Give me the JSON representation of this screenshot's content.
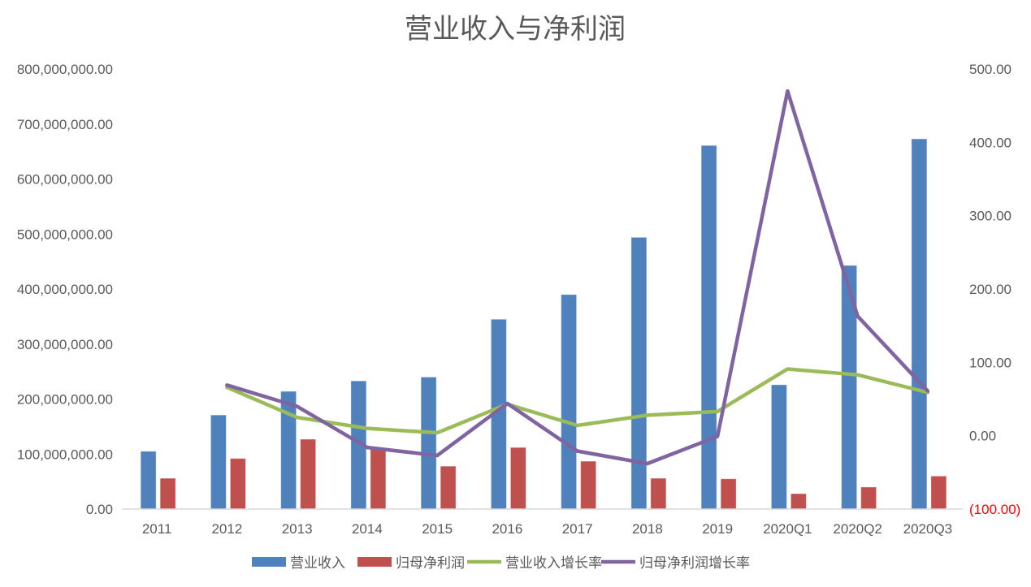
{
  "chart_data": {
    "type": "bar",
    "title": "营业收入与净利润",
    "categories": [
      "2011",
      "2012",
      "2013",
      "2014",
      "2015",
      "2016",
      "2017",
      "2018",
      "2019",
      "2020Q1",
      "2020Q2",
      "2020Q3"
    ],
    "y_left": {
      "range": [
        0,
        800000000
      ],
      "ticks": [
        "0.00",
        "100,000,000.00",
        "200,000,000.00",
        "300,000,000.00",
        "400,000,000.00",
        "500,000,000.00",
        "600,000,000.00",
        "700,000,000.00",
        "800,000,000.00"
      ]
    },
    "y_right": {
      "range": [
        -100,
        500
      ],
      "ticks": [
        "(100.00)",
        "0.00",
        "100.00",
        "200.00",
        "300.00",
        "400.00",
        "500.00"
      ],
      "negative_tick_color": "#ff0000"
    },
    "grid": false,
    "legend_position": "bottom",
    "series": [
      {
        "name": "营业收入",
        "type": "bar",
        "axis": "left",
        "color": "#4f81bd",
        "values": [
          105000000,
          171000000,
          214000000,
          233000000,
          240000000,
          345000000,
          390000000,
          494000000,
          661000000,
          226000000,
          443000000,
          673000000
        ]
      },
      {
        "name": "归母净利润",
        "type": "bar",
        "axis": "left",
        "color": "#c0504d",
        "values": [
          56000000,
          92000000,
          127000000,
          109000000,
          78000000,
          112000000,
          87000000,
          56000000,
          55000000,
          28000000,
          40000000,
          60000000
        ]
      },
      {
        "name": "营业收入增长率",
        "type": "line",
        "axis": "right",
        "color": "#9bbb59",
        "values": [
          null,
          66,
          25,
          10,
          4,
          43,
          14,
          28,
          33,
          91,
          83,
          59
        ]
      },
      {
        "name": "归母净利润增长率",
        "type": "line",
        "axis": "right",
        "color": "#8064a2",
        "values": [
          null,
          69,
          40,
          -16,
          -27,
          44,
          -21,
          -38,
          -1,
          470,
          163,
          61
        ]
      }
    ]
  }
}
